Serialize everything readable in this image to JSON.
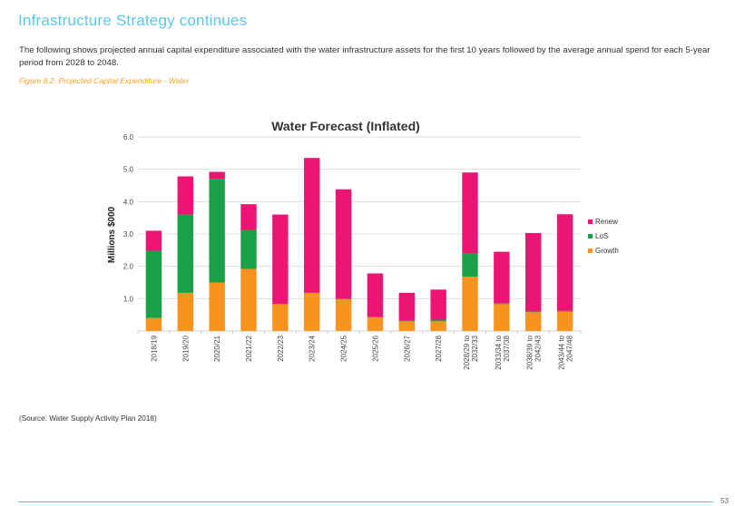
{
  "page": {
    "heading": "Infrastructure Strategy continues",
    "intro": "The following shows projected annual capital expenditure associated with the water infrastructure assets for the first 10 years followed by the average annual spend for each 5-year period from 2028 to 2048.",
    "figure_caption": "Figure 8.2.  Projected Capital Expenditure - Water",
    "source": "(Source:  Water Supply Activity Plan 2018)",
    "page_number": "53",
    "accent_color": "#5bc8e8",
    "caption_color": "#f4a024"
  },
  "chart_data": {
    "type": "bar",
    "stacked": true,
    "title": "Water Forecast (Inflated)",
    "xlabel": "",
    "ylabel": "Millions $000",
    "ylim": [
      0,
      6
    ],
    "yticks": [
      "1.0",
      "2.0",
      "3.0",
      "4.0",
      "5.0",
      "6.0"
    ],
    "grid": true,
    "legend_position": "right",
    "categories": [
      [
        "2018/19"
      ],
      [
        "2019/20"
      ],
      [
        "2020/21"
      ],
      [
        "2021/22"
      ],
      [
        "2022/23"
      ],
      [
        "2023/24"
      ],
      [
        "2024/25"
      ],
      [
        "2025/26"
      ],
      [
        "2026/27"
      ],
      [
        "2027/28"
      ],
      [
        "2028/29 to",
        "2032/33"
      ],
      [
        "2033/34 to",
        "2037/38"
      ],
      [
        "2038/39 to",
        "2042/43"
      ],
      [
        "2043/44 to",
        "2047/48"
      ]
    ],
    "series": [
      {
        "name": "Growth",
        "color": "#f7931e",
        "values": [
          0.4,
          1.18,
          1.5,
          1.92,
          0.83,
          1.18,
          0.98,
          0.42,
          0.3,
          0.3,
          1.68,
          0.83,
          0.58,
          0.6
        ]
      },
      {
        "name": "LoS",
        "color": "#1aa147",
        "values": [
          2.08,
          2.42,
          3.2,
          1.22,
          0.0,
          0.0,
          0.02,
          0.02,
          0.02,
          0.05,
          0.72,
          0.02,
          0.02,
          0.02
        ]
      },
      {
        "name": "Renew",
        "color": "#ec1574",
        "values": [
          0.62,
          1.18,
          0.22,
          0.78,
          2.77,
          4.17,
          3.38,
          1.34,
          0.86,
          0.93,
          2.5,
          1.6,
          2.43,
          2.99
        ]
      }
    ],
    "legend_order": [
      "Renew",
      "LoS",
      "Growth"
    ]
  }
}
